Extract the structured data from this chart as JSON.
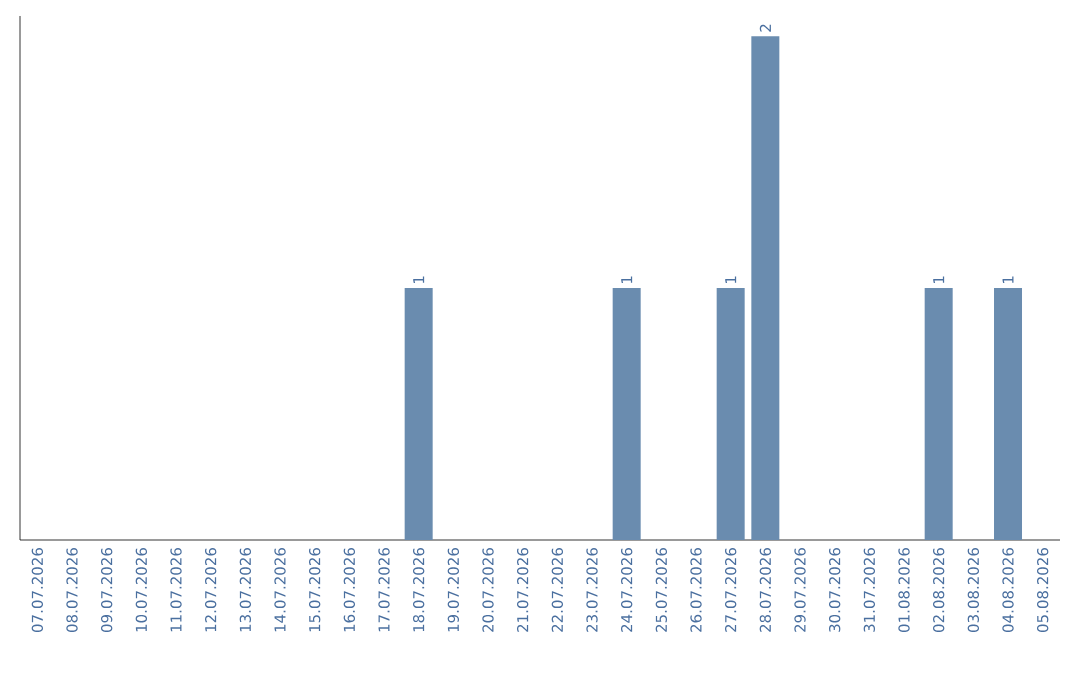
{
  "chart_data": {
    "type": "bar",
    "categories": [
      "07.07.2026",
      "08.07.2026",
      "09.07.2026",
      "10.07.2026",
      "11.07.2026",
      "12.07.2026",
      "13.07.2026",
      "14.07.2026",
      "15.07.2026",
      "16.07.2026",
      "17.07.2026",
      "18.07.2026",
      "19.07.2026",
      "20.07.2026",
      "21.07.2026",
      "22.07.2026",
      "23.07.2026",
      "24.07.2026",
      "25.07.2026",
      "26.07.2026",
      "27.07.2026",
      "28.07.2026",
      "29.07.2026",
      "30.07.2026",
      "31.07.2026",
      "01.08.2026",
      "02.08.2026",
      "03.08.2026",
      "04.08.2026",
      "05.08.2026"
    ],
    "values": [
      0,
      0,
      0,
      0,
      0,
      0,
      0,
      0,
      0,
      0,
      0,
      1,
      0,
      0,
      0,
      0,
      0,
      1,
      0,
      0,
      1,
      2,
      0,
      0,
      0,
      0,
      1,
      0,
      1,
      0
    ],
    "value_labels": [
      null,
      null,
      null,
      null,
      null,
      null,
      null,
      null,
      null,
      null,
      null,
      "1",
      null,
      null,
      null,
      null,
      null,
      "1",
      null,
      null,
      "1",
      "2",
      null,
      null,
      null,
      null,
      "1",
      null,
      "1",
      null
    ],
    "color": "#6a8caf"
  }
}
